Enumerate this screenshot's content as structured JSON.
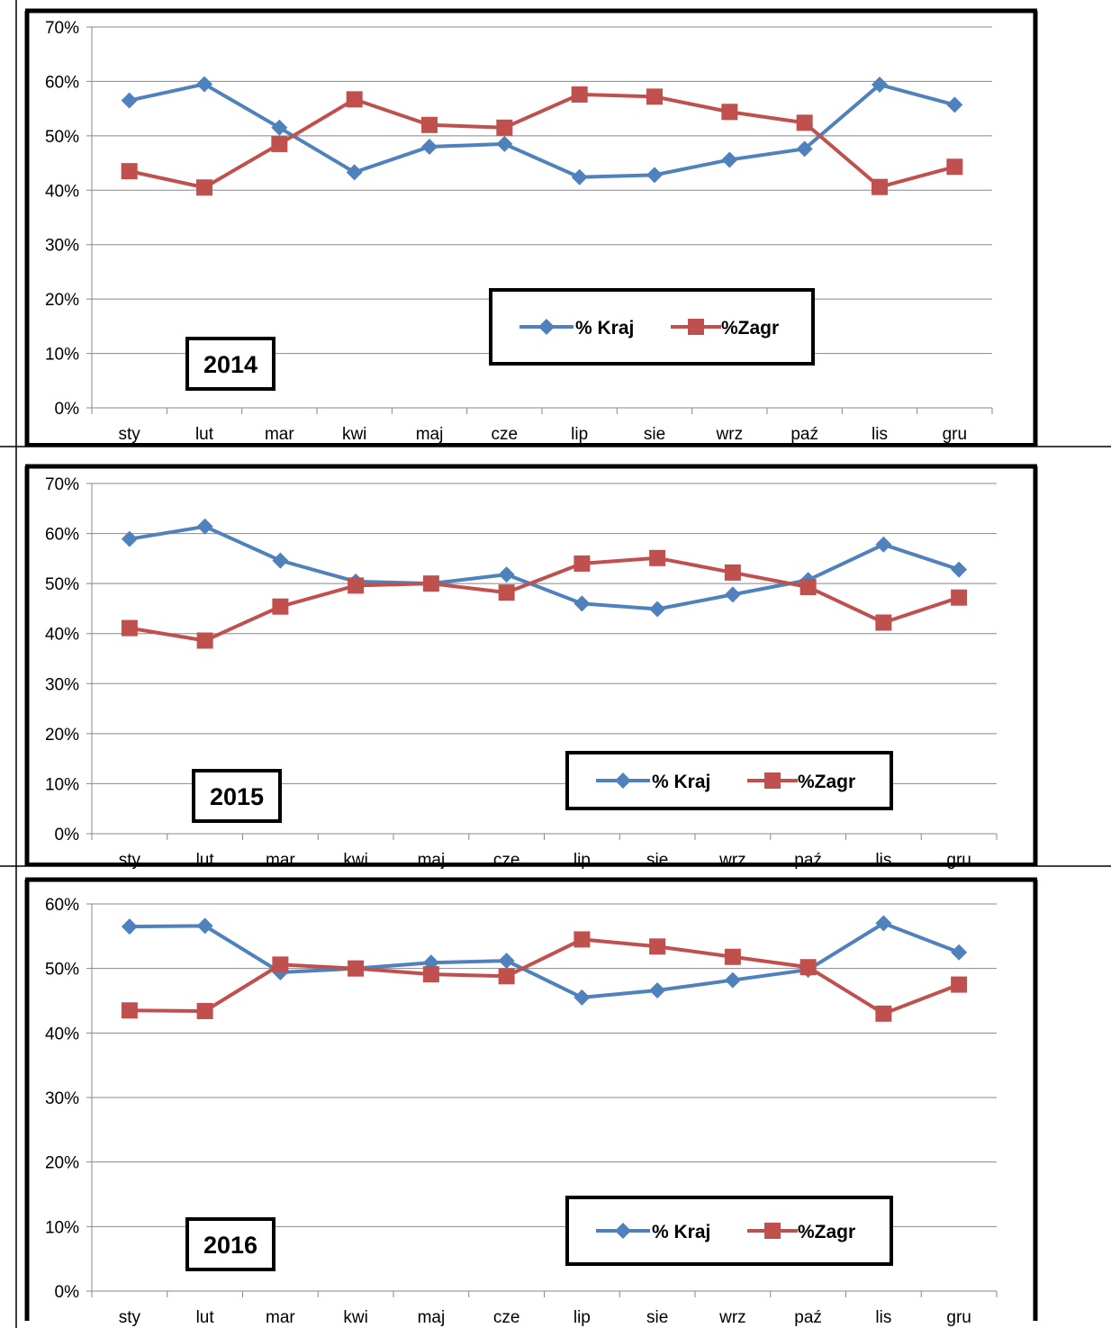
{
  "colors": {
    "kraj": "#4f81bd",
    "zagr": "#c0504d",
    "grid": "#888888"
  },
  "legend": {
    "kraj": "% Kraj",
    "zagr": "%Zagr"
  },
  "chart_data": [
    {
      "type": "line",
      "title": "2014",
      "categories": [
        "sty",
        "lut",
        "mar",
        "kwi",
        "maj",
        "cze",
        "lip",
        "sie",
        "wrz",
        "paź",
        "lis",
        "gru"
      ],
      "ylim": [
        0,
        70
      ],
      "yticks": [
        "0%",
        "10%",
        "20%",
        "30%",
        "40%",
        "50%",
        "60%",
        "70%"
      ],
      "grid": true,
      "legend_position": "bottom-center",
      "series": [
        {
          "name": "% Kraj",
          "values": [
            56.5,
            59.5,
            51.5,
            43.3,
            48.0,
            48.5,
            42.4,
            42.8,
            45.6,
            47.6,
            59.4,
            55.7
          ]
        },
        {
          "name": "%Zagr",
          "values": [
            43.5,
            40.5,
            48.5,
            56.7,
            52.0,
            51.5,
            57.6,
            57.2,
            54.4,
            52.4,
            40.6,
            44.3
          ]
        }
      ]
    },
    {
      "type": "line",
      "title": "2015",
      "categories": [
        "sty",
        "lut",
        "mar",
        "kwi",
        "maj",
        "cze",
        "lip",
        "sie",
        "wrz",
        "paź",
        "lis",
        "gru"
      ],
      "ylim": [
        0,
        70
      ],
      "yticks": [
        "0%",
        "10%",
        "20%",
        "30%",
        "40%",
        "50%",
        "60%",
        "70%"
      ],
      "grid": true,
      "legend_position": "bottom-right",
      "series": [
        {
          "name": "% Kraj",
          "values": [
            58.9,
            61.4,
            54.6,
            50.4,
            50.0,
            51.8,
            46.0,
            44.9,
            47.8,
            50.7,
            57.8,
            52.8
          ]
        },
        {
          "name": "%Zagr",
          "values": [
            41.1,
            38.6,
            45.4,
            49.6,
            50.0,
            48.2,
            54.0,
            55.1,
            52.2,
            49.3,
            42.2,
            47.2
          ]
        }
      ]
    },
    {
      "type": "line",
      "title": "2016",
      "categories": [
        "sty",
        "lut",
        "mar",
        "kwi",
        "maj",
        "cze",
        "lip",
        "sie",
        "wrz",
        "paź",
        "lis",
        "gru"
      ],
      "ylim": [
        0,
        60
      ],
      "yticks": [
        "0%",
        "10%",
        "20%",
        "30%",
        "40%",
        "50%",
        "60%"
      ],
      "grid": true,
      "legend_position": "bottom-right",
      "series": [
        {
          "name": "% Kraj",
          "values": [
            56.5,
            56.6,
            49.4,
            50.0,
            50.9,
            51.2,
            45.5,
            46.6,
            48.2,
            49.8,
            57.0,
            52.5
          ]
        },
        {
          "name": "%Zagr",
          "values": [
            43.5,
            43.4,
            50.6,
            50.0,
            49.1,
            48.8,
            54.5,
            53.4,
            51.8,
            50.2,
            43.0,
            47.5
          ]
        }
      ]
    }
  ]
}
